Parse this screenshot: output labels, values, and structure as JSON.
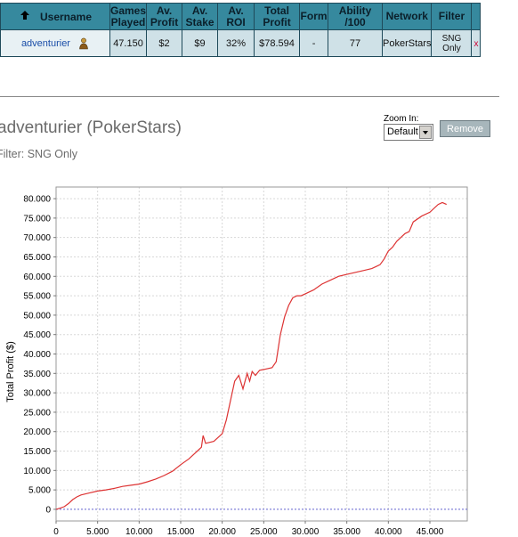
{
  "table": {
    "headers": {
      "username": "Username",
      "games_played": [
        "Games",
        "Played"
      ],
      "av_profit": [
        "Av.",
        "Profit"
      ],
      "av_stake": [
        "Av.",
        "Stake"
      ],
      "av_roi": [
        "Av.",
        "ROI"
      ],
      "total_profit": [
        "Total",
        "Profit"
      ],
      "form": "Form",
      "ability": "Ability /100",
      "network": "Network",
      "filter": "Filter"
    },
    "row": {
      "username": "adventurier",
      "games_played": "47.150",
      "av_profit": "$2",
      "av_stake": "$9",
      "av_roi": "32%",
      "total_profit": "$78.594",
      "form": "-",
      "ability": "77",
      "network": "PokerStars",
      "filter": [
        "SNG",
        "Only"
      ],
      "remove": "x"
    }
  },
  "player_title": "adventurier (PokerStars)",
  "filter_line": "Filter: SNG Only",
  "zoom": {
    "label": "Zoom In:",
    "selected": "Default"
  },
  "remove_button": "Remove",
  "colors": {
    "header_bg": "#36899e",
    "row_bg": "#cfe1e7",
    "line": "#dd3333",
    "zero_line": "#6a6ad8"
  },
  "chart_data": {
    "type": "line",
    "xlabel": "",
    "ylabel": "Total Profit ($)",
    "xlim": [
      0,
      49500
    ],
    "ylim": [
      -3000,
      83000
    ],
    "xticks": [
      "0",
      "5.000",
      "10.000",
      "15.000",
      "20.000",
      "25.000",
      "30.000",
      "35.000",
      "40.000",
      "45.000"
    ],
    "yticks": [
      "0",
      "5.000",
      "10.000",
      "15.000",
      "20.000",
      "25.000",
      "30.000",
      "35.000",
      "40.000",
      "45.000",
      "50.000",
      "55.000",
      "60.000",
      "65.000",
      "70.000",
      "75.000",
      "80.000"
    ],
    "grid": true,
    "series": [
      {
        "x": [
          0,
          500,
          1000,
          1500,
          2000,
          2500,
          3000,
          4000,
          5000,
          6000,
          7000,
          8000,
          9000,
          10000,
          11000,
          12000,
          13000,
          14000,
          15000,
          16000,
          17000,
          17500,
          17700,
          18000,
          19000,
          20000,
          20500,
          21000,
          21500,
          22000,
          22500,
          23000,
          23300,
          23600,
          24000,
          24500,
          25000,
          26000,
          26500,
          27000,
          27500,
          28000,
          28500,
          29000,
          29500,
          30000,
          31000,
          32000,
          33000,
          34000,
          35000,
          36000,
          37000,
          38000,
          38500,
          39000,
          39500,
          40000,
          40500,
          41000,
          42000,
          42500,
          43000,
          44000,
          45000,
          46000,
          46500,
          47000
        ],
        "y": [
          0,
          300,
          700,
          1500,
          2500,
          3200,
          3700,
          4200,
          4700,
          5000,
          5400,
          5900,
          6200,
          6500,
          7100,
          7800,
          8700,
          9800,
          11500,
          13000,
          15000,
          16000,
          19000,
          17000,
          17500,
          19500,
          23000,
          28000,
          33000,
          34500,
          31000,
          35000,
          33000,
          35500,
          34500,
          35800,
          36000,
          36500,
          38000,
          45000,
          49500,
          52500,
          54500,
          55000,
          55000,
          55500,
          56500,
          58000,
          59000,
          60000,
          60500,
          61000,
          61500,
          62000,
          62500,
          63000,
          64500,
          66500,
          67500,
          69000,
          71000,
          71500,
          74000,
          75500,
          76500,
          78500,
          79000,
          78500
        ]
      }
    ]
  }
}
